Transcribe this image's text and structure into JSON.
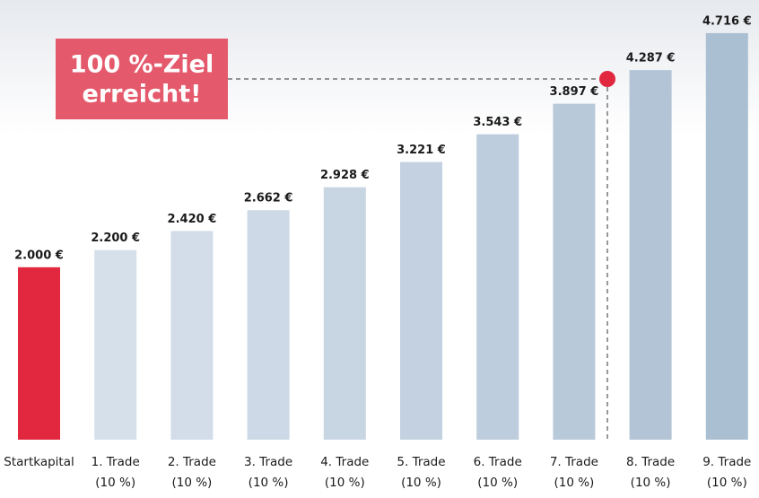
{
  "chart_data": {
    "type": "bar",
    "categories": [
      "Startkapital",
      "1. Trade",
      "2. Trade",
      "3. Trade",
      "4. Trade",
      "5. Trade",
      "6. Trade",
      "7. Trade",
      "8. Trade",
      "9. Trade"
    ],
    "category_notes": [
      null,
      "(10 %)",
      "(10 %)",
      "(10 %)",
      "(10 %)",
      "(10 %)",
      "(10 %)",
      "(10 %)",
      "(10 %)",
      "(10 %)"
    ],
    "values": [
      2000,
      2200,
      2420,
      2662,
      2928,
      3221,
      3543,
      3897,
      4287,
      4716
    ],
    "value_labels": [
      "2.000 €",
      "2.200 €",
      "2.420 €",
      "2.662 €",
      "2.928 €",
      "3.221 €",
      "3.543 €",
      "3.897 €",
      "4.287 €",
      "4.716 €"
    ],
    "colors": [
      "#e1283f",
      "#d6e0eb",
      "#d2dde9",
      "#cdd9e6",
      "#c8d5e3",
      "#c3d1e0",
      "#bdcddd",
      "#b8c9da",
      "#b2c4d6",
      "#abbfd2"
    ],
    "ylim": [
      0,
      5100
    ],
    "annotation": [
      "100 %-Ziel",
      "erreicht!"
    ]
  }
}
